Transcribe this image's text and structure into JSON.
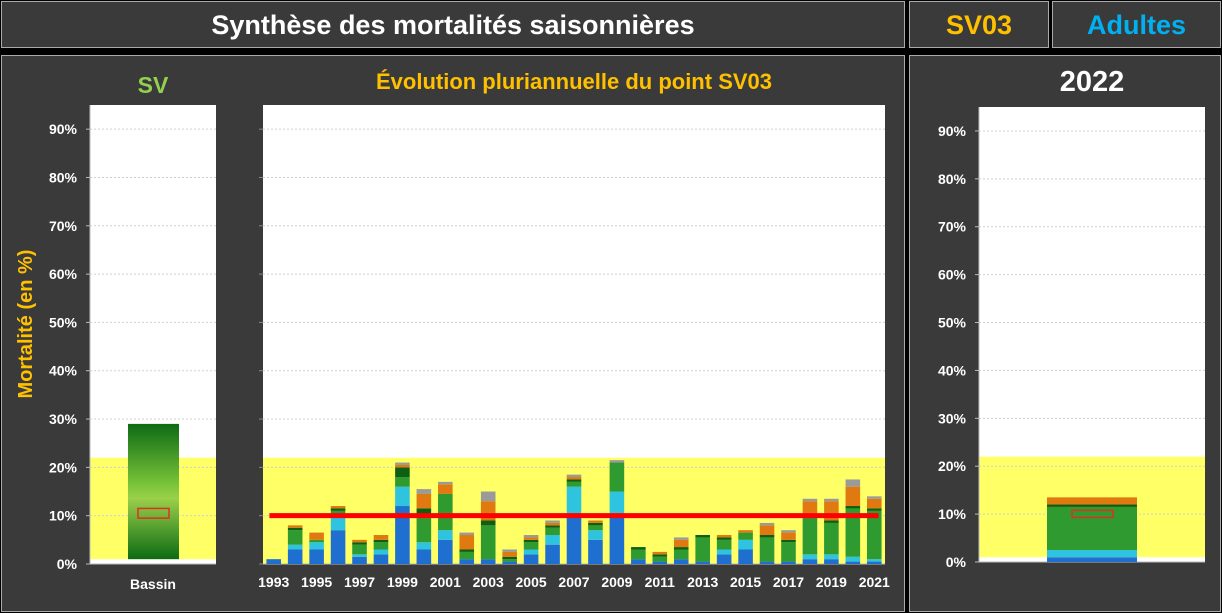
{
  "header": {
    "title": "Synthèse des mortalités saisonnières",
    "station": "SV03",
    "population": "Adultes"
  },
  "left_panel": {
    "title": "SV",
    "ylabel": "Mortalité (en %)",
    "category": "Bassin"
  },
  "middle_panel": {
    "title": "Évolution pluriannuelle du point SV03"
  },
  "right_panel": {
    "title": "2022"
  },
  "colors": {
    "title_white": "#ffffff",
    "accent_yellow": "#ffc000",
    "accent_cyan": "#00b0f0",
    "green_title": "#92d050",
    "band_yellow": "#ffff66",
    "mean_line_red": "#ff0000",
    "panel_bg": "#3a3a3a"
  },
  "chart_data": [
    {
      "type": "bar",
      "title": "SV",
      "ylabel": "Mortalité (en %)",
      "categories": [
        "Bassin"
      ],
      "ylim": [
        0,
        95
      ],
      "yticks": [
        "0%",
        "10%",
        "20%",
        "30%",
        "40%",
        "50%",
        "60%",
        "70%",
        "80%",
        "90%"
      ],
      "grid": true,
      "band": [
        1,
        22
      ],
      "range_bar": {
        "from": 1,
        "to": 29
      },
      "marker": {
        "from": 9.5,
        "to": 11.5
      }
    },
    {
      "type": "bar",
      "title": "Évolution pluriannuelle du point SV03",
      "stacked": true,
      "ylim": [
        0,
        95
      ],
      "grid": true,
      "band": [
        0,
        22
      ],
      "mean_line": 10,
      "x_tick_labels": [
        "1993",
        "1995",
        "1997",
        "1999",
        "2001",
        "2003",
        "2005",
        "2007",
        "2009",
        "2011",
        "2013",
        "2015",
        "2017",
        "2019",
        "2021"
      ],
      "categories": [
        "1993",
        "1994",
        "1995",
        "1996",
        "1997",
        "1998",
        "1999",
        "2000",
        "2001",
        "2002",
        "2003",
        "2004",
        "2005",
        "2006",
        "2007",
        "2008",
        "2009",
        "2010",
        "2011",
        "2012",
        "2013",
        "2014",
        "2015",
        "2016",
        "2017",
        "2018",
        "2019",
        "2020",
        "2021"
      ],
      "series": [
        {
          "color": "#1f6fd0",
          "values": [
            1,
            3,
            3,
            7,
            1.5,
            2,
            12,
            3,
            5,
            1,
            1,
            0.5,
            2,
            4,
            10,
            5,
            10,
            1,
            0.5,
            1,
            0.5,
            2,
            3,
            0.5,
            0.5,
            1,
            1,
            0.5,
            0.5
          ]
        },
        {
          "color": "#2ec4e0",
          "values": [
            0,
            1,
            1.5,
            3,
            0.5,
            1,
            4,
            1.5,
            2,
            0,
            0,
            0,
            1,
            2,
            6,
            2,
            5,
            0,
            0,
            0,
            0,
            1,
            2,
            0,
            0,
            1,
            1,
            1,
            0.5
          ]
        },
        {
          "color": "#2f9a2f",
          "values": [
            0,
            3,
            0.5,
            1,
            2,
            1.5,
            2,
            5,
            7.5,
            1.5,
            7,
            0.5,
            1.5,
            1.5,
            1,
            1,
            6,
            2,
            1,
            2,
            5,
            2,
            1.5,
            5,
            4,
            7.5,
            6.5,
            10,
            10
          ]
        },
        {
          "color": "#0d5f14",
          "values": [
            0,
            0.5,
            0,
            0.5,
            0.5,
            0.5,
            2,
            2,
            0,
            0.5,
            1,
            0.5,
            0.5,
            0.5,
            0.5,
            0.5,
            0,
            0.5,
            0.5,
            0.5,
            0.5,
            0.5,
            0,
            0.5,
            0.5,
            0.5,
            0.5,
            0.5,
            0.5
          ]
        },
        {
          "color": "#e07a10",
          "values": [
            0,
            0.5,
            1.5,
            0.5,
            0.5,
            1,
            0.5,
            3,
            2,
            3,
            4,
            1,
            0.5,
            0.5,
            0.5,
            0.5,
            0,
            0,
            0.5,
            1.5,
            0,
            0.5,
            0.5,
            2,
            1.5,
            3,
            4,
            4,
            2
          ]
        },
        {
          "color": "#9a9a9a",
          "values": [
            0,
            0,
            0,
            0,
            0,
            0,
            0.5,
            1,
            0.5,
            0.5,
            2,
            0.5,
            0.5,
            0.5,
            0.5,
            0,
            0.5,
            0,
            0,
            0.5,
            0,
            0,
            0,
            0.5,
            0.5,
            0.5,
            0.5,
            1.5,
            0.5
          ]
        }
      ]
    },
    {
      "type": "bar",
      "title": "2022",
      "stacked": true,
      "ylim": [
        0,
        95
      ],
      "grid": true,
      "band": [
        1,
        22
      ],
      "categories": [
        "2022"
      ],
      "series": [
        {
          "color": "#1f6fd0",
          "values": [
            1
          ]
        },
        {
          "color": "#2ec4e0",
          "values": [
            1.5
          ]
        },
        {
          "color": "#2f9a2f",
          "values": [
            9
          ]
        },
        {
          "color": "#0d5f14",
          "values": [
            0.5
          ]
        },
        {
          "color": "#e07a10",
          "values": [
            1.5
          ]
        },
        {
          "color": "#9a9a9a",
          "values": [
            0
          ]
        }
      ],
      "marker": {
        "from": 9.3,
        "to": 10.8
      }
    }
  ]
}
